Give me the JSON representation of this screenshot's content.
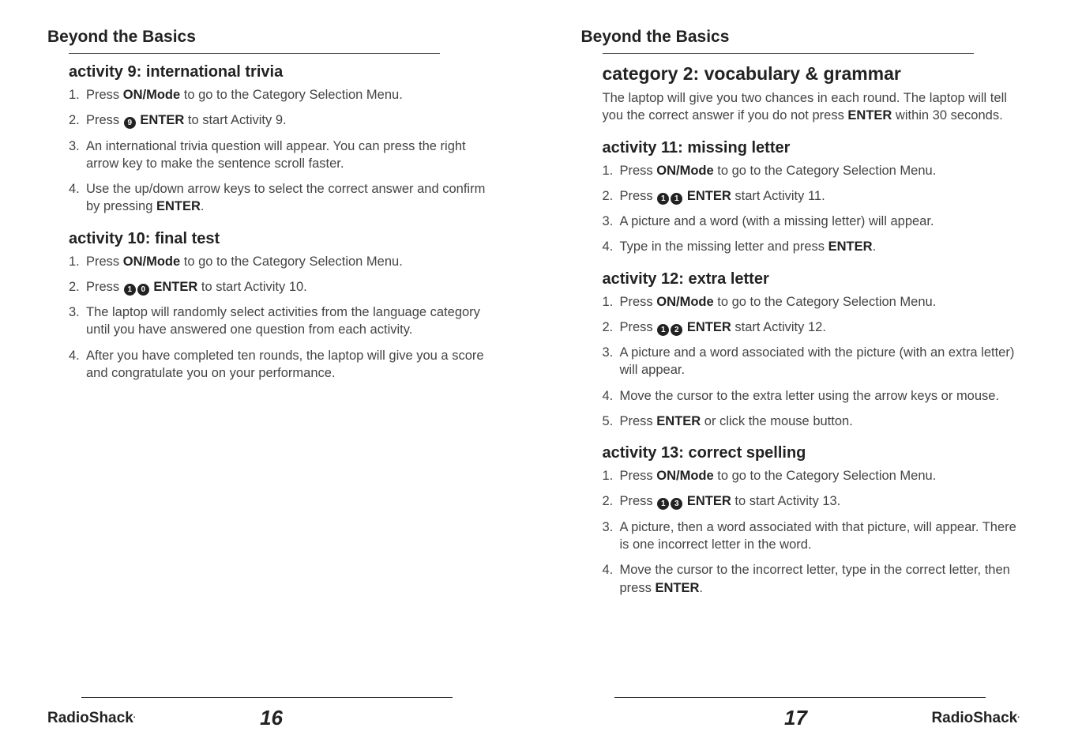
{
  "left": {
    "section": "Beyond the Basics",
    "activities": [
      {
        "title": "activity 9: international trivia",
        "steps": [
          {
            "n": "1.",
            "pre": "Press ",
            "b1": "ON/Mode",
            "post": " to go to the Category Selection Menu."
          },
          {
            "n": "2.",
            "pre": "Press ",
            "circ": [
              "9"
            ],
            "b1": " ENTER",
            "post": " to start Activity 9."
          },
          {
            "n": "3.",
            "pre": "An international trivia question will appear. You can press the right arrow key to make the sentence scroll faster."
          },
          {
            "n": "4.",
            "pre": "Use the up/down arrow keys to select the correct answer and confirm by pressing ",
            "b1": "ENTER",
            "post": "."
          }
        ]
      },
      {
        "title": "activity 10: final test",
        "steps": [
          {
            "n": "1.",
            "pre": "Press ",
            "b1": "ON/Mode",
            "post": " to go to the Category Selection Menu."
          },
          {
            "n": "2.",
            "pre": "Press ",
            "circ": [
              "1",
              "0"
            ],
            "b1": " ENTER",
            "post": " to start Activity 10."
          },
          {
            "n": "3.",
            "pre": "The laptop will randomly select activities from the language category until you have answered one question from each activity."
          },
          {
            "n": "4.",
            "pre": "After you have completed ten rounds, the laptop will give you a score and congratulate you on your performance."
          }
        ]
      }
    ],
    "brand": "RadioShack",
    "page": "16"
  },
  "right": {
    "section": "Beyond the Basics",
    "category": "category 2: vocabulary & grammar",
    "intro_pre": "The laptop will give you two chances in each round. The laptop will tell you the correct answer if you do not press ",
    "intro_bold": "ENTER",
    "intro_post": " within 30 seconds.",
    "activities": [
      {
        "title": "activity 11: missing letter",
        "steps": [
          {
            "n": "1.",
            "pre": "Press ",
            "b1": "ON/Mode",
            "post": " to go to the Category Selection Menu."
          },
          {
            "n": "2.",
            "pre": "Press ",
            "circ": [
              "1",
              "1"
            ],
            "b1": " ENTER",
            "post": " start Activity 11."
          },
          {
            "n": "3.",
            "pre": "A picture and a word (with a missing letter) will appear."
          },
          {
            "n": "4.",
            "pre": "Type in the missing letter and press ",
            "b1": "ENTER",
            "post": "."
          }
        ]
      },
      {
        "title": "activity 12: extra letter",
        "steps": [
          {
            "n": "1.",
            "pre": "Press ",
            "b1": "ON/Mode",
            "post": " to go to the Category Selection Menu."
          },
          {
            "n": "2.",
            "pre": "Press ",
            "circ": [
              "1",
              "2"
            ],
            "b1": " ENTER",
            "post": " start Activity 12."
          },
          {
            "n": "3.",
            "pre": "A picture and a word associated with the picture (with an extra letter) will appear."
          },
          {
            "n": "4.",
            "pre": "Move the cursor to the extra letter using the arrow keys or mouse."
          },
          {
            "n": "5.",
            "pre": "Press ",
            "b1": "ENTER",
            "post": " or click the mouse button."
          }
        ]
      },
      {
        "title": "activity 13: correct spelling",
        "steps": [
          {
            "n": "1.",
            "pre": "Press ",
            "b1": "ON/Mode",
            "post": " to go to the Category Selection Menu."
          },
          {
            "n": "2.",
            "pre": "Press ",
            "circ": [
              "1",
              "3"
            ],
            "b1": " ENTER",
            "post": " to start Activity 13."
          },
          {
            "n": "3.",
            "pre": "A picture, then a word associated with that picture, will appear. There is one incorrect letter in the word."
          },
          {
            "n": "4.",
            "pre": "Move the cursor to the incorrect letter, type in the correct letter, then press ",
            "b1": "ENTER",
            "post": "."
          }
        ]
      }
    ],
    "brand": "RadioShack",
    "page": "17"
  }
}
